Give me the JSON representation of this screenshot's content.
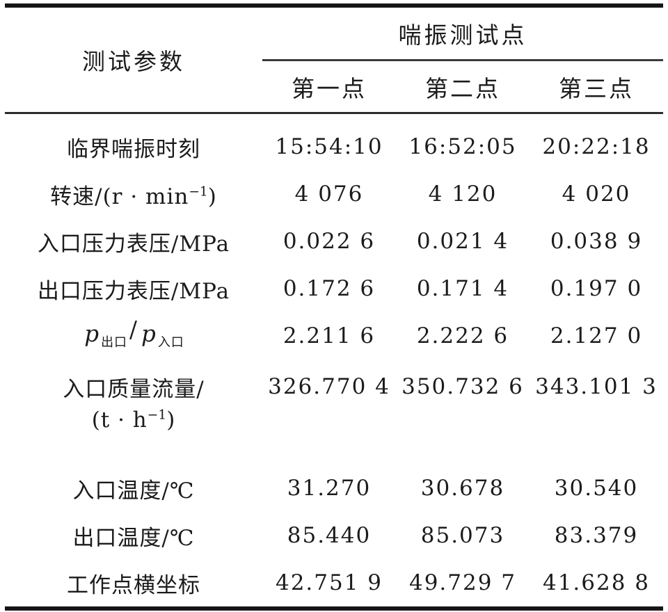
{
  "table": {
    "header": {
      "param": "测试参数",
      "group": "喘振测试点",
      "points": [
        "第一点",
        "第二点",
        "第三点"
      ]
    },
    "rows": [
      {
        "label": "临界喘振时刻",
        "values": [
          "15:54:10",
          "16:52:05",
          "20:22:18"
        ]
      },
      {
        "label_pre": "转速/(r · min",
        "label_sup": "−1",
        "label_post": ")",
        "values": [
          "4 076",
          "4 120",
          "4 020"
        ]
      },
      {
        "label": "入口压力表压/MPa",
        "values": [
          "0.022 6",
          "0.021 4",
          "0.038 9"
        ]
      },
      {
        "label": "出口压力表压/MPa",
        "values": [
          "0.172 6",
          "0.171 4",
          "0.197 0"
        ]
      },
      {
        "p1": "p",
        "sub1": "出口",
        "slash": "/",
        "p2": "p",
        "sub2": "入口",
        "values": [
          "2.211 6",
          "2.222 6",
          "2.127 0"
        ]
      },
      {
        "label_line1": "入口质量流量/",
        "label2_pre": "(t · h",
        "label2_sup": "−1",
        "label2_post": ")",
        "values": [
          "326.770 4",
          "350.732 6",
          "343.101 3"
        ]
      },
      {
        "label": "入口温度/℃",
        "values": [
          "31.270",
          "30.678",
          "30.540"
        ]
      },
      {
        "label": "出口温度/℃",
        "values": [
          "85.440",
          "85.073",
          "83.379"
        ]
      },
      {
        "label": "工作点横坐标",
        "values": [
          "42.751 9",
          "49.729 7",
          "41.628 8"
        ]
      }
    ]
  },
  "colors": {
    "background": "#ffffff",
    "text": "#1b1b1b",
    "thick_rule": "#161616",
    "thin_rule": "#2c2c2c"
  }
}
